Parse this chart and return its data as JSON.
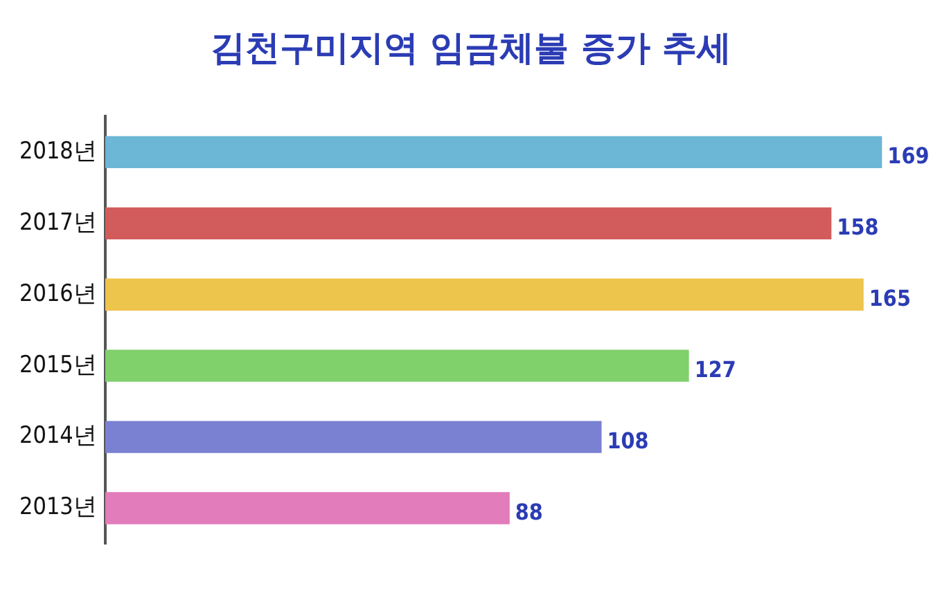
{
  "chart_data": {
    "type": "bar",
    "orientation": "horizontal",
    "title": "김천구미지역 임금체불 증가 추세",
    "categories": [
      "2018년",
      "2017년",
      "2016년",
      "2015년",
      "2014년",
      "2013년"
    ],
    "values": [
      169,
      158,
      165,
      127,
      108,
      88
    ],
    "colors": [
      "#6cb6d6",
      "#d25c5c",
      "#edc44c",
      "#80d06c",
      "#7a80d2",
      "#e27cba"
    ],
    "xlim": [
      0,
      170
    ],
    "tick_labels": "y",
    "legend": false,
    "data_labels": true
  }
}
